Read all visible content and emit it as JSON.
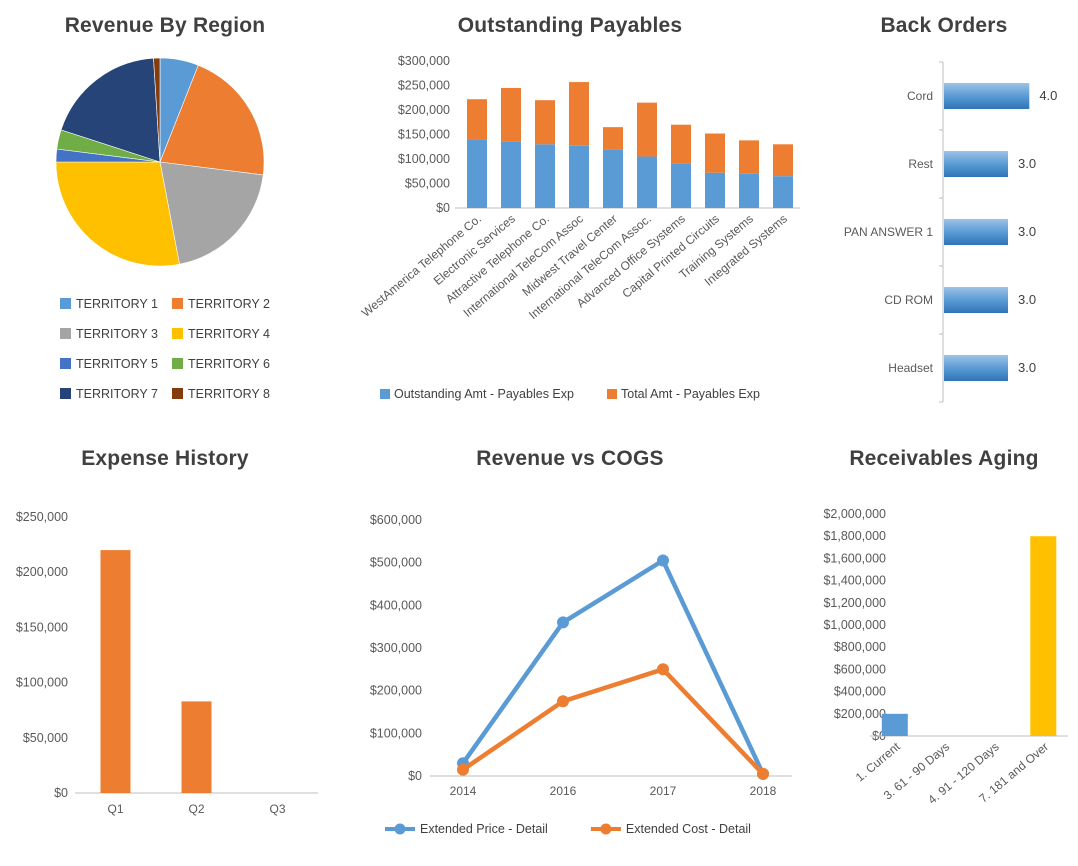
{
  "chart_data": [
    {
      "id": "revenue-by-region",
      "type": "pie",
      "title": "Revenue By Region",
      "labels": [
        "TERRITORY 1",
        "TERRITORY 2",
        "TERRITORY 3",
        "TERRITORY 4",
        "TERRITORY 5",
        "TERRITORY 6",
        "TERRITORY 7",
        "TERRITORY 8"
      ],
      "values": [
        6,
        21,
        20,
        28,
        2,
        3,
        19,
        1
      ],
      "colors": [
        "#5B9BD5",
        "#ED7D31",
        "#A5A5A5",
        "#FFC000",
        "#4472C4",
        "#70AD47",
        "#264478",
        "#843C0C"
      ],
      "legend_position": "bottom"
    },
    {
      "id": "outstanding-payables",
      "type": "bar",
      "subtype": "stacked",
      "title": "Outstanding Payables",
      "categories": [
        "WestAmerica Telephone Co.",
        "Electronic Services",
        "Attractive Telephone Co.",
        "International TeleCom Assoc",
        "Midwest Travel Center",
        "International TeleCom Assoc.",
        "Advanced Office Systems",
        "Capital Printed Circuits",
        "Training Systems",
        "Integrated Systems"
      ],
      "series": [
        {
          "name": "Outstanding Amt - Payables Exp",
          "color": "#5B9BD5",
          "values": [
            140000,
            135000,
            130000,
            127000,
            120000,
            105000,
            90000,
            72000,
            70000,
            65000
          ]
        },
        {
          "name": "Total Amt - Payables Exp",
          "color": "#ED7D31",
          "values": [
            82000,
            110000,
            90000,
            130000,
            45000,
            110000,
            80000,
            80000,
            68000,
            65000
          ]
        }
      ],
      "ylim": [
        0,
        300000
      ],
      "ytick": 50000,
      "tick_format": "usd",
      "legend_position": "bottom",
      "grid": false
    },
    {
      "id": "back-orders",
      "type": "bar",
      "subtype": "horizontal",
      "title": "Back Orders",
      "categories": [
        "Cord",
        "Rest",
        "PAN ANSWER 1",
        "CD ROM",
        "Headset"
      ],
      "values": [
        4.0,
        3.0,
        3.0,
        3.0,
        3.0
      ],
      "value_labels": [
        "4.0",
        "3.0",
        "3.0",
        "3.0",
        "3.0"
      ],
      "xlim": [
        0,
        4.5
      ],
      "color": "#5B9BD5",
      "value_format": "0.0",
      "grid": false
    },
    {
      "id": "expense-history",
      "type": "bar",
      "title": "Expense History",
      "categories": [
        "Q1",
        "Q2",
        "Q3"
      ],
      "values": [
        220000,
        83000,
        0
      ],
      "color": "#ED7D31",
      "ylim": [
        0,
        250000
      ],
      "ytick": 50000,
      "tick_format": "usd",
      "grid": false
    },
    {
      "id": "revenue-vs-cogs",
      "type": "line",
      "title": "Revenue vs COGS",
      "x": [
        "2014",
        "2016",
        "2017",
        "2018"
      ],
      "series": [
        {
          "name": "Extended Price - Detail",
          "color": "#5B9BD5",
          "values": [
            30000,
            360000,
            505000,
            5000
          ]
        },
        {
          "name": "Extended Cost - Detail",
          "color": "#ED7D31",
          "values": [
            15000,
            175000,
            250000,
            5000
          ]
        }
      ],
      "ylim": [
        0,
        600000
      ],
      "ytick": 100000,
      "tick_format": "usd",
      "marker": "circle",
      "legend_position": "bottom",
      "grid": false
    },
    {
      "id": "receivables-aging",
      "type": "bar",
      "title": "Receivables Aging",
      "categories": [
        "1. Current",
        "3. 61 - 90 Days",
        "4. 91 - 120 Days",
        "7. 181 and Over"
      ],
      "values": [
        200000,
        0,
        0,
        1800000
      ],
      "colors": [
        "#5B9BD5",
        "#ED7D31",
        "#A5A5A5",
        "#FFC000"
      ],
      "ylim": [
        0,
        2000000
      ],
      "ytick": 200000,
      "tick_format": "usd",
      "grid": false
    }
  ]
}
